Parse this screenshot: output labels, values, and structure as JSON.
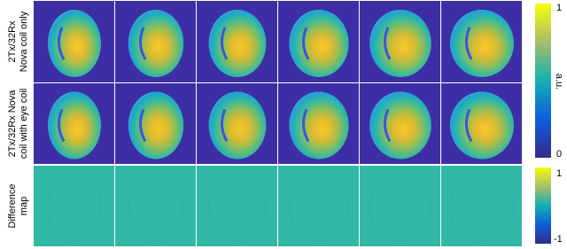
{
  "rows": [
    {
      "label": [
        "2Tx/32Rx",
        "Nova coil only"
      ]
    },
    {
      "label": [
        "2Tx/32Rx Nova",
        "coil with eye coil"
      ]
    },
    {
      "label": [
        "Difference",
        "map"
      ]
    }
  ],
  "colorbars": [
    {
      "top": "1",
      "bottom": "0",
      "unit": "a.u."
    },
    {
      "top": "1",
      "bottom": "-1"
    }
  ]
}
